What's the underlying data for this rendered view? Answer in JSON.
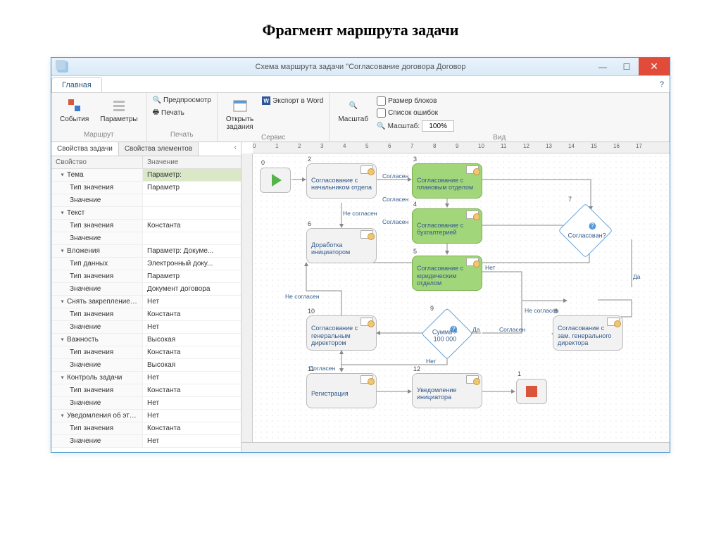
{
  "page": {
    "title": "Фрагмент маршрута задачи"
  },
  "window": {
    "title": "Схема маршрута задачи \"Согласование договора Договор"
  },
  "ribbon": {
    "tab": "Главная",
    "groups": {
      "route": {
        "label": "Маршрут",
        "events": "События",
        "params": "Параметры"
      },
      "print": {
        "label": "Печать",
        "preview": "Предпросмотр",
        "print": "Печать"
      },
      "service": {
        "label": "Сервис",
        "open": "Открыть\nзадания",
        "export": "Экспорт в Word"
      },
      "view": {
        "label": "Вид",
        "zoom": "Масштаб",
        "blocksize": "Размер блоков",
        "errlist": "Список ошибок",
        "zoomlbl": "Масштаб:",
        "zoomval": "100%"
      }
    }
  },
  "side": {
    "tab1": "Свойства задачи",
    "tab2": "Свойства элементов",
    "col1": "Свойство",
    "col2": "Значение",
    "rows": [
      {
        "g": 1,
        "k": "Тема",
        "v": "Параметр:",
        "hl": 1
      },
      {
        "g": 0,
        "k": "Тип значения",
        "v": "Параметр"
      },
      {
        "g": 0,
        "k": "Значение",
        "v": ""
      },
      {
        "g": 1,
        "k": "Текст",
        "v": ""
      },
      {
        "g": 0,
        "k": "Тип значения",
        "v": "Константа"
      },
      {
        "g": 0,
        "k": "Значение",
        "v": ""
      },
      {
        "g": 1,
        "k": "Вложения",
        "v": "Параметр: Докуме..."
      },
      {
        "g": 0,
        "k": "Тип данных",
        "v": "Электронный доку..."
      },
      {
        "g": 0,
        "k": "Тип значения",
        "v": "Параметр"
      },
      {
        "g": 0,
        "k": "Значение",
        "v": "Документ договора"
      },
      {
        "g": 1,
        "k": "Снять закрепление вло...",
        "v": "Нет"
      },
      {
        "g": 0,
        "k": "Тип значения",
        "v": "Константа"
      },
      {
        "g": 0,
        "k": "Значение",
        "v": "Нет"
      },
      {
        "g": 1,
        "k": "Важность",
        "v": "Высокая"
      },
      {
        "g": 0,
        "k": "Тип значения",
        "v": "Константа"
      },
      {
        "g": 0,
        "k": "Значение",
        "v": "Высокая"
      },
      {
        "g": 1,
        "k": "Контроль задачи",
        "v": "Нет"
      },
      {
        "g": 0,
        "k": "Тип значения",
        "v": "Константа"
      },
      {
        "g": 0,
        "k": "Значение",
        "v": "Нет"
      },
      {
        "g": 1,
        "k": "Уведомления об этапах",
        "v": "Нет"
      },
      {
        "g": 0,
        "k": "Тип значения",
        "v": "Константа"
      },
      {
        "g": 0,
        "k": "Значение",
        "v": "Нет"
      }
    ]
  },
  "ruler": [
    "0",
    "1",
    "2",
    "3",
    "4",
    "5",
    "6",
    "7",
    "8",
    "9",
    "10",
    "11",
    "12",
    "13",
    "14",
    "15",
    "16",
    "17"
  ],
  "nodes": {
    "n2": "Согласование с начальником отдела",
    "n3": "Согласование с плановым отделом",
    "n4": "Согласование с бухгалтерией",
    "n5": "Согласование с юридическим отделом",
    "n6": "Доработка инициатором",
    "n7": "Согласован?",
    "n8": "Согласование с зам. генерального директора",
    "n9": "Сумма > 100 000",
    "n10": "Согласование с генеральным директором",
    "n11": "Регистрация",
    "n12": "Уведомление инициатора"
  },
  "nums": {
    "n0": "0",
    "n2": "2",
    "n3": "3",
    "n4": "4",
    "n5": "5",
    "n6": "6",
    "n7": "7",
    "n8": "8",
    "n9": "9",
    "n10": "10",
    "n11": "11",
    "n12": "12",
    "n1": "1"
  },
  "labels": {
    "agree": "Согласен",
    "disagree": "Не согласен",
    "yes": "Да",
    "no": "Нет"
  },
  "colors": {
    "green": "#a1d67a",
    "gray": "#f2f2f2",
    "edge": "#888888",
    "text": "#335a8a"
  }
}
